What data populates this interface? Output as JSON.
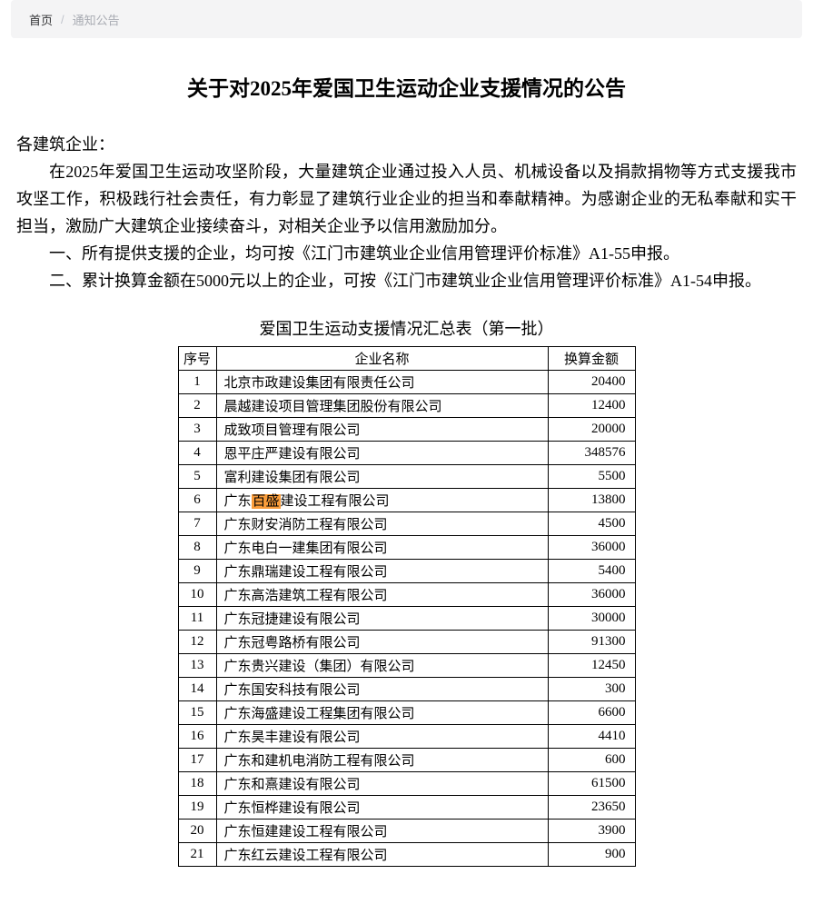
{
  "breadcrumb": {
    "home": "首页",
    "separator": "/",
    "current": "通知公告"
  },
  "article": {
    "title": "关于对2025年爱国卫生运动企业支援情况的公告",
    "salutation": "各建筑企业：",
    "paragraphs": [
      "在2025年爱国卫生运动攻坚阶段，大量建筑企业通过投入人员、机械设备以及捐款捐物等方式支援我市攻坚工作，积极践行社会责任，有力彰显了建筑行业企业的担当和奉献精神。为感谢企业的无私奉献和实干担当，激励广大建筑企业接续奋斗，对相关企业予以信用激励加分。",
      "一、所有提供支援的企业，均可按《江门市建筑业企业信用管理评价标准》A1-55申报。",
      "二、累计换算金额在5000元以上的企业，可按《江门市建筑业企业信用管理评价标准》A1-54申报。"
    ]
  },
  "table": {
    "caption": "爱国卫生运动支援情况汇总表（第一批）",
    "columns": [
      "序号",
      "企业名称",
      "换算金额"
    ],
    "highlight_color": "#FA9D3B",
    "rows": [
      {
        "no": "1",
        "name": "北京市政建设集团有限责任公司",
        "amount": "20400"
      },
      {
        "no": "2",
        "name": "晨越建设项目管理集团股份有限公司",
        "amount": "12400"
      },
      {
        "no": "3",
        "name": "成致项目管理有限公司",
        "amount": "20000"
      },
      {
        "no": "4",
        "name": "恩平庄严建设有限公司",
        "amount": "348576"
      },
      {
        "no": "5",
        "name": "富利建设集团有限公司",
        "amount": "5500"
      },
      {
        "no": "6",
        "name": "广东百盛建设工程有限公司",
        "amount": "13800",
        "highlight": "百盛"
      },
      {
        "no": "7",
        "name": "广东财安消防工程有限公司",
        "amount": "4500"
      },
      {
        "no": "8",
        "name": "广东电白一建集团有限公司",
        "amount": "36000"
      },
      {
        "no": "9",
        "name": "广东鼎瑞建设工程有限公司",
        "amount": "5400"
      },
      {
        "no": "10",
        "name": "广东高浩建筑工程有限公司",
        "amount": "36000"
      },
      {
        "no": "11",
        "name": "广东冠捷建设有限公司",
        "amount": "30000"
      },
      {
        "no": "12",
        "name": "广东冠粤路桥有限公司",
        "amount": "91300"
      },
      {
        "no": "13",
        "name": "广东贵兴建设（集团）有限公司",
        "amount": "12450"
      },
      {
        "no": "14",
        "name": "广东国安科技有限公司",
        "amount": "300"
      },
      {
        "no": "15",
        "name": "广东海盛建设工程集团有限公司",
        "amount": "6600"
      },
      {
        "no": "16",
        "name": "广东昊丰建设有限公司",
        "amount": "4410"
      },
      {
        "no": "17",
        "name": "广东和建机电消防工程有限公司",
        "amount": "600"
      },
      {
        "no": "18",
        "name": "广东和熹建设有限公司",
        "amount": "61500"
      },
      {
        "no": "19",
        "name": "广东恒桦建设有限公司",
        "amount": "23650"
      },
      {
        "no": "20",
        "name": "广东恒建建设工程有限公司",
        "amount": "3900"
      },
      {
        "no": "21",
        "name": "广东红云建设工程有限公司",
        "amount": "900"
      }
    ]
  }
}
